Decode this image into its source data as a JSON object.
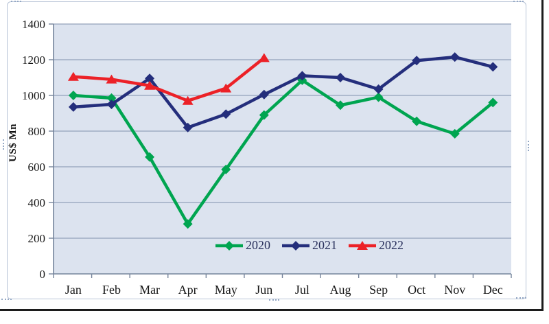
{
  "document": {
    "y_axis_title": "US$ Mn"
  },
  "chart_data": {
    "type": "line",
    "title": "",
    "categories": [
      "Jan",
      "Feb",
      "Mar",
      "Apr",
      "May",
      "Jun",
      "Jul",
      "Aug",
      "Sep",
      "Oct",
      "Nov",
      "Dec"
    ],
    "series": [
      {
        "name": "2020",
        "color": "#00A550",
        "marker": "diamond",
        "values": [
          1000,
          985,
          655,
          280,
          585,
          890,
          1085,
          945,
          990,
          855,
          785,
          960
        ]
      },
      {
        "name": "2021",
        "color": "#242E7C",
        "marker": "diamond",
        "values": [
          935,
          950,
          1095,
          820,
          895,
          1005,
          1110,
          1100,
          1035,
          1195,
          1215,
          1160
        ]
      },
      {
        "name": "2022",
        "color": "#EC2127",
        "marker": "triangle",
        "values": [
          1105,
          1090,
          1055,
          970,
          1040,
          1210
        ]
      }
    ],
    "xlabel": "",
    "ylabel": "US$ Mn",
    "ylim": [
      0,
      1400
    ],
    "ytick_step": 200,
    "grid": true,
    "legend_position": "inside-bottom-center",
    "plot_bg": "#dce3ef",
    "grid_color": "#93a2ba",
    "axis_color": "#75849b",
    "tick_label_color": "#151515",
    "legend_text_color": "#29305c"
  }
}
